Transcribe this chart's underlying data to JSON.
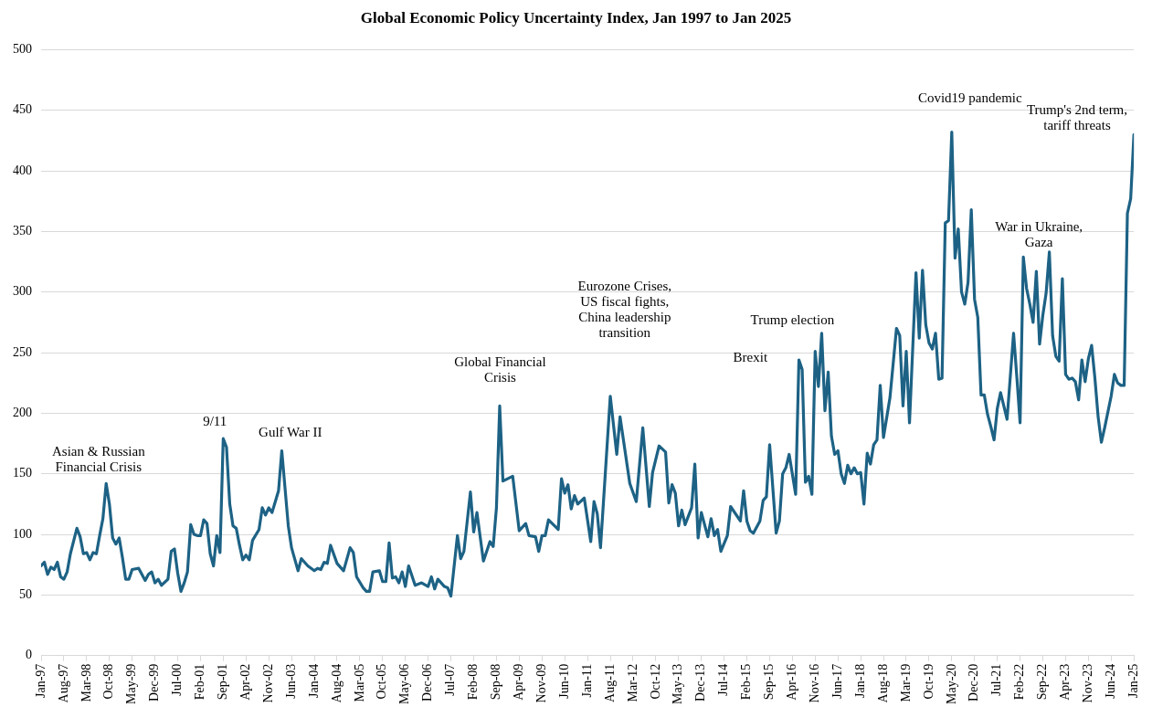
{
  "chart_data": {
    "type": "line",
    "title": "Global Economic Policy Uncertainty Index, Jan 1997 to Jan 2025",
    "x": [
      "1997-01",
      "1997-02",
      "1997-03",
      "1997-04",
      "1997-05",
      "1997-06",
      "1997-07",
      "1997-08",
      "1997-09",
      "1997-10",
      "1997-12",
      "1998-01",
      "1998-02",
      "1998-03",
      "1998-04",
      "1998-05",
      "1998-06",
      "1998-07",
      "1998-08",
      "1998-09",
      "1998-10",
      "1998-11",
      "1998-12",
      "1999-01",
      "1999-02",
      "1999-03",
      "1999-04",
      "1999-05",
      "1999-07",
      "1999-09",
      "1999-10",
      "1999-11",
      "1999-12",
      "2000-01",
      "2000-02",
      "2000-04",
      "2000-05",
      "2000-06",
      "2000-07",
      "2000-08",
      "2000-09",
      "2000-10",
      "2000-11",
      "2000-12",
      "2001-01",
      "2001-02",
      "2001-03",
      "2001-04",
      "2001-05",
      "2001-06",
      "2001-07",
      "2001-08",
      "2001-09",
      "2001-10",
      "2001-11",
      "2001-12",
      "2002-01",
      "2002-02",
      "2002-03",
      "2002-04",
      "2002-05",
      "2002-06",
      "2002-08",
      "2002-09",
      "2002-10",
      "2002-11",
      "2002-12",
      "2003-01",
      "2003-02",
      "2003-03",
      "2003-05",
      "2003-06",
      "2003-08",
      "2003-09",
      "2003-11",
      "2004-01",
      "2004-02",
      "2004-03",
      "2004-04",
      "2004-05",
      "2004-06",
      "2004-08",
      "2004-10",
      "2004-12",
      "2005-01",
      "2005-02",
      "2005-04",
      "2005-05",
      "2005-06",
      "2005-07",
      "2005-09",
      "2005-10",
      "2005-11",
      "2005-12",
      "2006-01",
      "2006-02",
      "2006-03",
      "2006-04",
      "2006-05",
      "2006-06",
      "2006-08",
      "2006-10",
      "2006-12",
      "2007-01",
      "2007-02",
      "2007-03",
      "2007-05",
      "2007-06",
      "2007-07",
      "2007-09",
      "2007-10",
      "2007-11",
      "2008-01",
      "2008-02",
      "2008-03",
      "2008-05",
      "2008-07",
      "2008-08",
      "2008-09",
      "2008-10",
      "2008-11",
      "2009-02",
      "2009-04",
      "2009-06",
      "2009-07",
      "2009-09",
      "2009-10",
      "2009-11",
      "2009-12",
      "2010-01",
      "2010-04",
      "2010-05",
      "2010-06",
      "2010-07",
      "2010-08",
      "2010-09",
      "2010-10",
      "2010-12",
      "2011-02",
      "2011-03",
      "2011-04",
      "2011-05",
      "2011-08",
      "2011-10",
      "2011-11",
      "2012-02",
      "2012-04",
      "2012-06",
      "2012-08",
      "2012-09",
      "2012-11",
      "2013-01",
      "2013-02",
      "2013-03",
      "2013-04",
      "2013-05",
      "2013-06",
      "2013-07",
      "2013-09",
      "2013-10",
      "2013-11",
      "2013-12",
      "2014-02",
      "2014-03",
      "2014-04",
      "2014-05",
      "2014-06",
      "2014-08",
      "2014-09",
      "2014-12",
      "2015-01",
      "2015-02",
      "2015-03",
      "2015-04",
      "2015-06",
      "2015-07",
      "2015-08",
      "2015-09",
      "2015-11",
      "2015-12",
      "2016-01",
      "2016-02",
      "2016-03",
      "2016-05",
      "2016-06",
      "2016-07",
      "2016-08",
      "2016-09",
      "2016-10",
      "2016-11",
      "2016-12",
      "2017-01",
      "2017-02",
      "2017-03",
      "2017-04",
      "2017-05",
      "2017-06",
      "2017-07",
      "2017-08",
      "2017-09",
      "2017-10",
      "2017-11",
      "2017-12",
      "2018-01",
      "2018-02",
      "2018-03",
      "2018-04",
      "2018-05",
      "2018-06",
      "2018-07",
      "2018-08",
      "2018-10",
      "2018-12",
      "2019-01",
      "2019-02",
      "2019-03",
      "2019-04",
      "2019-06",
      "2019-07",
      "2019-08",
      "2019-09",
      "2019-10",
      "2019-11",
      "2019-12",
      "2020-01",
      "2020-02",
      "2020-03",
      "2020-04",
      "2020-05",
      "2020-06",
      "2020-07",
      "2020-08",
      "2020-09",
      "2020-10",
      "2020-11",
      "2020-12",
      "2021-01",
      "2021-02",
      "2021-03",
      "2021-04",
      "2021-05",
      "2021-06",
      "2021-07",
      "2021-08",
      "2021-09",
      "2021-10",
      "2021-12",
      "2022-01",
      "2022-02",
      "2022-03",
      "2022-04",
      "2022-05",
      "2022-06",
      "2022-07",
      "2022-08",
      "2022-09",
      "2022-10",
      "2022-11",
      "2022-12",
      "2023-01",
      "2023-02",
      "2023-03",
      "2023-04",
      "2023-05",
      "2023-06",
      "2023-07",
      "2023-08",
      "2023-09",
      "2023-10",
      "2023-11",
      "2023-12",
      "2024-01",
      "2024-02",
      "2024-03",
      "2024-04",
      "2024-06",
      "2024-07",
      "2024-08",
      "2024-09",
      "2024-10",
      "2024-11",
      "2024-12",
      "2025-01"
    ],
    "series": [
      {
        "color": "#1d6285",
        "values": [
          74,
          77,
          67,
          73,
          71,
          77,
          65,
          63,
          69,
          84,
          105,
          98,
          84,
          85,
          79,
          85,
          84,
          99,
          113,
          142,
          125,
          97,
          92,
          97,
          81,
          63,
          63,
          71,
          72,
          62,
          67,
          69,
          60,
          63,
          58,
          63,
          86,
          88,
          68,
          53,
          60,
          69,
          108,
          100,
          99,
          99,
          112,
          109,
          84,
          74,
          99,
          85,
          179,
          172,
          125,
          107,
          105,
          91,
          79,
          83,
          79,
          95,
          104,
          122,
          116,
          122,
          118,
          127,
          136,
          169,
          107,
          89,
          70,
          80,
          74,
          70,
          72,
          71,
          77,
          76,
          91,
          76,
          70,
          89,
          85,
          65,
          56,
          53,
          53,
          69,
          70,
          61,
          61,
          93,
          64,
          65,
          60,
          69,
          57,
          74,
          58,
          60,
          57,
          65,
          55,
          63,
          57,
          56,
          49,
          99,
          80,
          86,
          135,
          102,
          118,
          78,
          94,
          90,
          122,
          206,
          144,
          148,
          103,
          109,
          99,
          98,
          86,
          99,
          99,
          112,
          104,
          146,
          134,
          141,
          121,
          132,
          125,
          130,
          94,
          127,
          117,
          89,
          214,
          166,
          197,
          142,
          127,
          188,
          123,
          151,
          173,
          168,
          126,
          141,
          134,
          107,
          120,
          108,
          122,
          158,
          97,
          118,
          98,
          113,
          99,
          104,
          86,
          99,
          123,
          111,
          136,
          111,
          103,
          101,
          111,
          128,
          131,
          174,
          101,
          111,
          150,
          155,
          166,
          133,
          244,
          236,
          143,
          148,
          133,
          251,
          222,
          266,
          202,
          234,
          181,
          166,
          169,
          150,
          142,
          157,
          150,
          155,
          150,
          151,
          125,
          167,
          158,
          174,
          178,
          223,
          180,
          213,
          270,
          264,
          206,
          251,
          192,
          316,
          262,
          318,
          273,
          258,
          253,
          266,
          228,
          229,
          357,
          359,
          432,
          328,
          352,
          300,
          290,
          308,
          368,
          294,
          279,
          215,
          215,
          199,
          189,
          178,
          204,
          217,
          206,
          195,
          266,
          230,
          192,
          329,
          303,
          290,
          275,
          317,
          257,
          281,
          299,
          333,
          264,
          247,
          243,
          311,
          232,
          228,
          229,
          226,
          211,
          244,
          226,
          245,
          256,
          229,
          197,
          176,
          188,
          214,
          232,
          225,
          223,
          223,
          365,
          377,
          430
        ]
      }
    ],
    "xlim": [
      "1997-01",
      "2025-01"
    ],
    "xticks": [
      {
        "value": "1997-01",
        "label": "Jan-97"
      },
      {
        "value": "1997-08",
        "label": "Aug-97"
      },
      {
        "value": "1998-03",
        "label": "Mar-98"
      },
      {
        "value": "1998-10",
        "label": "Oct-98"
      },
      {
        "value": "1999-05",
        "label": "May-99"
      },
      {
        "value": "1999-12",
        "label": "Dec-99"
      },
      {
        "value": "2000-07",
        "label": "Jul-00"
      },
      {
        "value": "2001-02",
        "label": "Feb-01"
      },
      {
        "value": "2001-09",
        "label": "Sep-01"
      },
      {
        "value": "2002-04",
        "label": "Apr-02"
      },
      {
        "value": "2002-11",
        "label": "Nov-02"
      },
      {
        "value": "2003-06",
        "label": "Jun-03"
      },
      {
        "value": "2004-01",
        "label": "Jan-04"
      },
      {
        "value": "2004-08",
        "label": "Aug-04"
      },
      {
        "value": "2005-03",
        "label": "Mar-05"
      },
      {
        "value": "2005-10",
        "label": "Oct-05"
      },
      {
        "value": "2006-05",
        "label": "May-06"
      },
      {
        "value": "2006-12",
        "label": "Dec-06"
      },
      {
        "value": "2007-07",
        "label": "Jul-07"
      },
      {
        "value": "2008-02",
        "label": "Feb-08"
      },
      {
        "value": "2008-09",
        "label": "Sep-08"
      },
      {
        "value": "2009-04",
        "label": "Apr-09"
      },
      {
        "value": "2009-11",
        "label": "Nov-09"
      },
      {
        "value": "2010-06",
        "label": "Jun-10"
      },
      {
        "value": "2011-01",
        "label": "Jan-11"
      },
      {
        "value": "2011-08",
        "label": "Aug-11"
      },
      {
        "value": "2012-03",
        "label": "Mar-12"
      },
      {
        "value": "2012-10",
        "label": "Oct-12"
      },
      {
        "value": "2013-05",
        "label": "May-13"
      },
      {
        "value": "2013-12",
        "label": "Dec-13"
      },
      {
        "value": "2014-07",
        "label": "Jul-14"
      },
      {
        "value": "2015-02",
        "label": "Feb-15"
      },
      {
        "value": "2015-09",
        "label": "Sep-15"
      },
      {
        "value": "2016-04",
        "label": "Apr-16"
      },
      {
        "value": "2016-11",
        "label": "Nov-16"
      },
      {
        "value": "2017-06",
        "label": "Jun-17"
      },
      {
        "value": "2018-01",
        "label": "Jan-18"
      },
      {
        "value": "2018-08",
        "label": "Aug-18"
      },
      {
        "value": "2019-03",
        "label": "Mar-19"
      },
      {
        "value": "2019-10",
        "label": "Oct-19"
      },
      {
        "value": "2020-05",
        "label": "May-20"
      },
      {
        "value": "2020-12",
        "label": "Dec-20"
      },
      {
        "value": "2021-07",
        "label": "Jul-21"
      },
      {
        "value": "2022-02",
        "label": "Feb-22"
      },
      {
        "value": "2022-09",
        "label": "Sep-22"
      },
      {
        "value": "2023-04",
        "label": "Apr-23"
      },
      {
        "value": "2023-11",
        "label": "Nov-23"
      },
      {
        "value": "2024-06",
        "label": "Jun-24"
      },
      {
        "value": "2025-01",
        "label": "Jan-25"
      }
    ],
    "ylim": [
      0,
      500
    ],
    "yticks": [
      0,
      50,
      100,
      150,
      200,
      250,
      300,
      350,
      400,
      450,
      500
    ],
    "grid": "y",
    "marker": "none",
    "line_style": "solid",
    "annotations": [
      "Asian & Russian\nFinancial Crisis",
      "9/11",
      "Gulf War II",
      "Global Financial\nCrisis",
      "Eurozone Crises,\nUS fiscal fights,\nChina leadership\ntransition",
      "Brexit",
      "Trump election",
      "Covid19 pandemic",
      "War in Ukraine,\nGaza",
      "Trump's 2nd term,\ntariff threats"
    ]
  }
}
